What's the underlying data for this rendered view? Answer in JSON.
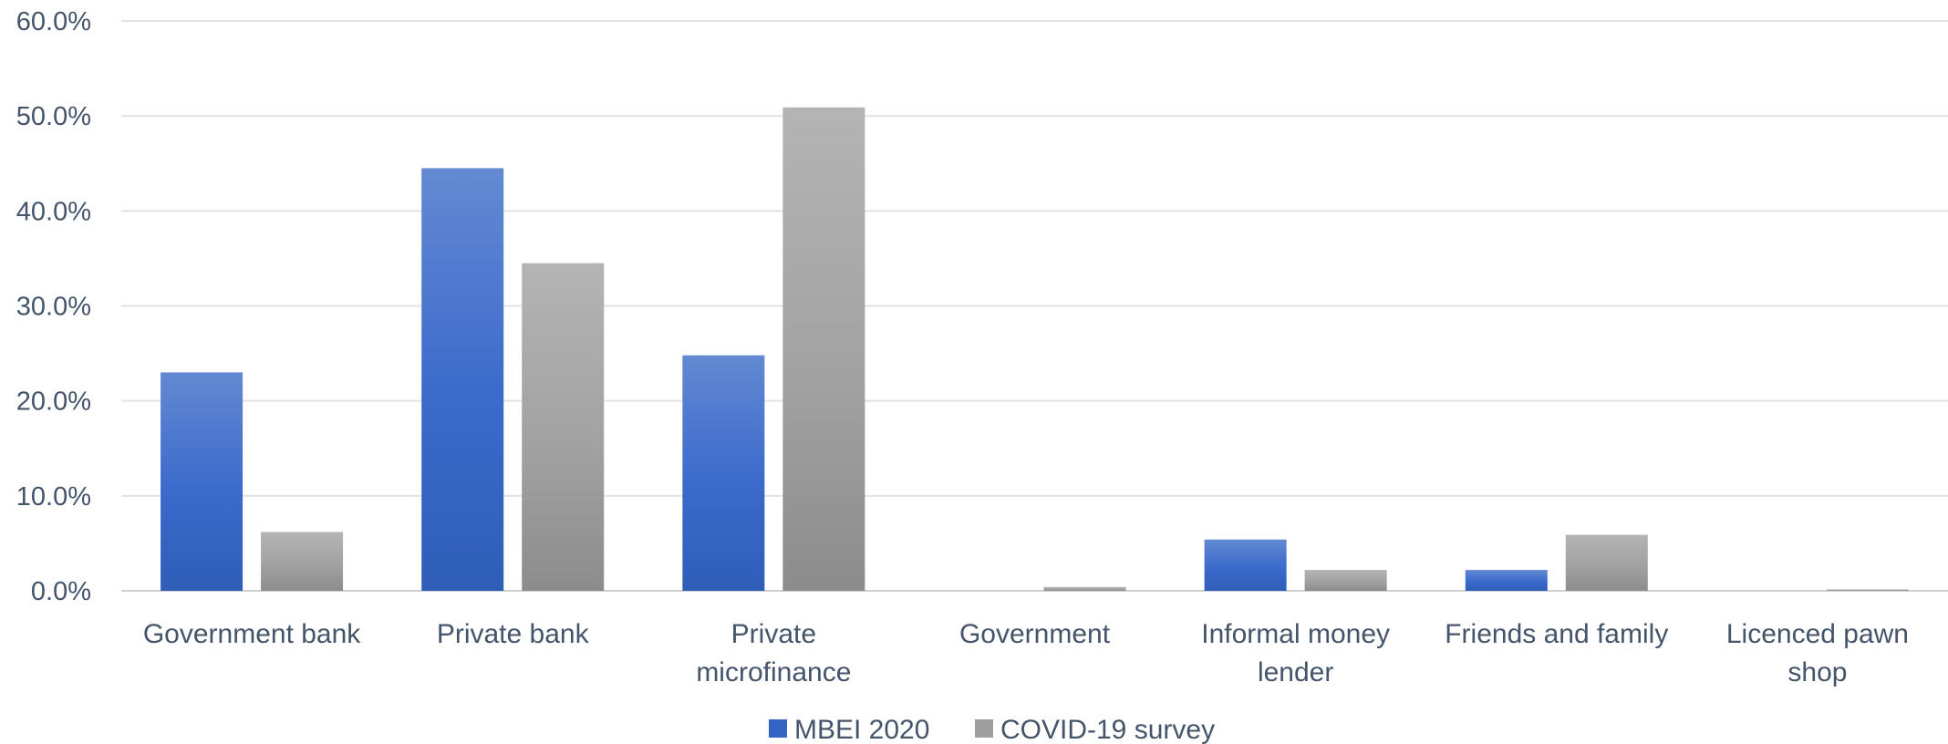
{
  "chart_data": {
    "type": "bar",
    "title": "",
    "xlabel": "",
    "ylabel": "",
    "ylim": [
      0,
      60
    ],
    "yticks": [
      "0.0%",
      "10.0%",
      "20.0%",
      "30.0%",
      "40.0%",
      "50.0%",
      "60.0%"
    ],
    "grid": true,
    "legend_position": "bottom",
    "categories": [
      [
        "Government bank"
      ],
      [
        "Private bank"
      ],
      [
        "Private",
        "microfinance"
      ],
      [
        "Government"
      ],
      [
        "Informal money",
        "lender"
      ],
      [
        "Friends and family"
      ],
      [
        "Licenced pawn",
        "shop"
      ]
    ],
    "series": [
      {
        "name": "MBEI 2020",
        "color": "#3a69c7",
        "values": [
          23.0,
          44.5,
          24.8,
          0.0,
          5.4,
          2.2,
          0.0
        ]
      },
      {
        "name": "COVID-19 survey",
        "color": "#a0a0a0",
        "values": [
          6.2,
          34.5,
          50.9,
          0.4,
          2.2,
          5.9,
          0.15
        ]
      }
    ]
  }
}
